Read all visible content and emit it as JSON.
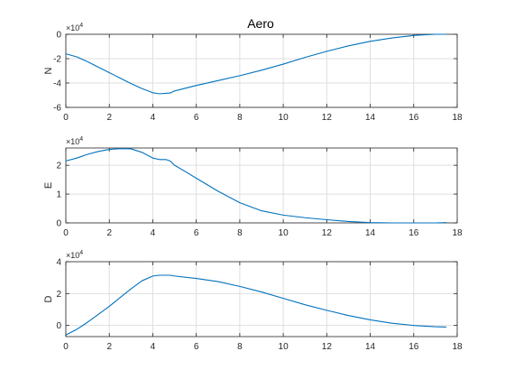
{
  "figure": {
    "title": "Aero"
  },
  "colors": {
    "line": "#0072BD",
    "grid": "#dfdfdf",
    "axis": "#262626",
    "background": "#ffffff"
  },
  "chart_data": [
    {
      "type": "line",
      "title": "Aero",
      "xlabel": "",
      "ylabel": "N",
      "scale_label": "×10^4",
      "exponent_base": "×10",
      "exponent_power": "4",
      "xlim": [
        0,
        18
      ],
      "ylim": [
        -6,
        0
      ],
      "xticks": [
        0,
        2,
        4,
        6,
        8,
        10,
        12,
        14,
        16,
        18
      ],
      "yticks": [
        -6,
        -4,
        -2,
        0
      ],
      "ytick_labels": [
        "-6",
        "-4",
        "-2",
        "0"
      ],
      "grid": true,
      "series": [
        {
          "x": [
            0,
            0.5,
            1,
            1.5,
            2,
            2.5,
            3,
            3.5,
            4,
            4.3,
            4.6,
            4.8,
            5,
            6,
            7,
            8,
            9,
            10,
            11,
            12,
            13,
            14,
            15,
            16,
            16.5,
            17,
            17.5
          ],
          "y": [
            -1.6,
            -1.85,
            -2.25,
            -2.7,
            -3.15,
            -3.6,
            -4.05,
            -4.45,
            -4.8,
            -4.88,
            -4.85,
            -4.82,
            -4.65,
            -4.2,
            -3.8,
            -3.4,
            -2.95,
            -2.45,
            -1.9,
            -1.4,
            -0.95,
            -0.58,
            -0.3,
            -0.1,
            -0.04,
            0.0,
            0.0
          ]
        }
      ]
    },
    {
      "type": "line",
      "xlabel": "",
      "ylabel": "E",
      "scale_label": "×10^4",
      "exponent_base": "×10",
      "exponent_power": "4",
      "xlim": [
        0,
        18
      ],
      "ylim": [
        0,
        2.6
      ],
      "xticks": [
        0,
        2,
        4,
        6,
        8,
        10,
        12,
        14,
        16,
        18
      ],
      "yticks": [
        0,
        1,
        2
      ],
      "ytick_labels": [
        "0",
        "1",
        "2"
      ],
      "grid": true,
      "series": [
        {
          "x": [
            0,
            0.5,
            1,
            1.5,
            2,
            2.5,
            3,
            3.5,
            4,
            4.3,
            4.6,
            4.8,
            5,
            5.5,
            6,
            7,
            8,
            9,
            10,
            11,
            12,
            13,
            14,
            15,
            16,
            17,
            17.5
          ],
          "y": [
            2.15,
            2.25,
            2.38,
            2.48,
            2.55,
            2.58,
            2.57,
            2.45,
            2.25,
            2.2,
            2.2,
            2.15,
            2.0,
            1.78,
            1.55,
            1.1,
            0.7,
            0.42,
            0.27,
            0.18,
            0.11,
            0.05,
            0.01,
            0.0,
            0.0,
            0.0,
            0.01
          ]
        }
      ]
    },
    {
      "type": "line",
      "xlabel": "",
      "ylabel": "D",
      "scale_label": "×10^4",
      "exponent_base": "×10",
      "exponent_power": "4",
      "xlim": [
        0,
        18
      ],
      "ylim": [
        -0.7,
        4
      ],
      "xticks": [
        0,
        2,
        4,
        6,
        8,
        10,
        12,
        14,
        16,
        18
      ],
      "yticks": [
        0,
        2,
        4
      ],
      "ytick_labels": [
        "0",
        "2",
        "4"
      ],
      "grid": true,
      "series": [
        {
          "x": [
            0,
            0.5,
            1,
            1.5,
            2,
            2.5,
            3,
            3.5,
            4,
            4.3,
            4.6,
            4.8,
            5,
            6,
            7,
            8,
            9,
            10,
            11,
            12,
            13,
            14,
            15,
            16,
            17,
            17.5
          ],
          "y": [
            -0.6,
            -0.25,
            0.2,
            0.7,
            1.2,
            1.75,
            2.3,
            2.8,
            3.1,
            3.15,
            3.15,
            3.15,
            3.1,
            2.95,
            2.75,
            2.45,
            2.1,
            1.7,
            1.3,
            0.95,
            0.62,
            0.35,
            0.14,
            0.0,
            -0.08,
            -0.1
          ]
        }
      ]
    }
  ]
}
